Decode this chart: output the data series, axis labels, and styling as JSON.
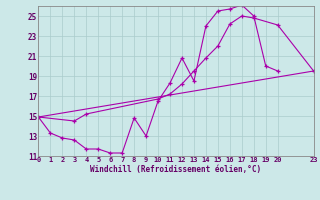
{
  "xlabel": "Windchill (Refroidissement éolien,°C)",
  "bg_color": "#cce8e8",
  "grid_color": "#aacccc",
  "line_color": "#aa00aa",
  "xlim": [
    0,
    23
  ],
  "ylim": [
    11,
    26
  ],
  "xticks": [
    0,
    1,
    2,
    3,
    4,
    5,
    6,
    7,
    8,
    9,
    10,
    11,
    12,
    13,
    14,
    15,
    16,
    17,
    18,
    19,
    20,
    23
  ],
  "yticks": [
    11,
    13,
    15,
    17,
    19,
    21,
    23,
    25
  ],
  "series1_x": [
    0,
    1,
    2,
    3,
    4,
    5,
    6,
    7,
    8,
    9,
    10,
    11,
    12,
    13,
    14,
    15,
    16,
    17,
    18,
    19,
    20
  ],
  "series1_y": [
    14.9,
    13.3,
    12.8,
    12.6,
    11.7,
    11.7,
    11.3,
    11.3,
    14.8,
    13.0,
    16.5,
    18.3,
    20.8,
    18.5,
    24.0,
    25.5,
    25.7,
    26.1,
    25.0,
    20.0,
    19.5
  ],
  "series2_x": [
    0,
    3,
    4,
    10,
    11,
    12,
    13,
    14,
    15,
    16,
    17,
    18,
    20,
    23
  ],
  "series2_y": [
    14.9,
    14.5,
    15.2,
    16.7,
    17.2,
    18.2,
    19.5,
    20.8,
    22.0,
    24.2,
    25.0,
    24.8,
    24.1,
    19.5
  ],
  "series3_x": [
    0,
    23
  ],
  "series3_y": [
    14.9,
    19.5
  ]
}
